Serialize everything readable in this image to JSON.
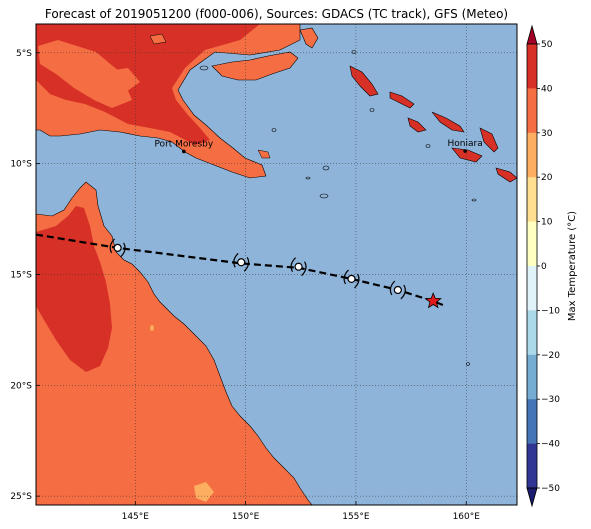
{
  "title": "Forecast of 2019051200 (f000-006), Sources: GDACS (TC track), GFS (Meteo)",
  "map": {
    "lon_range": [
      140.5,
      162.3
    ],
    "lat_range": [
      -25.4,
      -3.7
    ],
    "lon_ticks": [
      {
        "value": 145,
        "label": "145°E"
      },
      {
        "value": 150,
        "label": "150°E"
      },
      {
        "value": 155,
        "label": "155°E"
      },
      {
        "value": 160,
        "label": "160°E"
      }
    ],
    "lat_ticks": [
      {
        "value": -5,
        "label": "5°S"
      },
      {
        "value": -10,
        "label": "10°S"
      },
      {
        "value": -15,
        "label": "15°S"
      },
      {
        "value": -20,
        "label": "20°S"
      },
      {
        "value": -25,
        "label": "25°S"
      }
    ],
    "grid": "dotted",
    "colors": {
      "ocean": "#8fb4d9",
      "land_20_30": "#f46d43",
      "land_30_40": "#d73027",
      "land_10_20": "#fdae61",
      "track": "#000000",
      "star": "#e31a1c"
    }
  },
  "places": [
    {
      "name": "Port Moresby",
      "lon": 147.2,
      "lat": -9.45
    },
    {
      "name": "Honiara",
      "lon": 159.95,
      "lat": -9.43
    }
  ],
  "track": {
    "line": [
      [
        140.5,
        -13.2
      ],
      [
        144.2,
        -13.8
      ],
      [
        149.8,
        -14.5
      ],
      [
        152.4,
        -14.7
      ],
      [
        154.8,
        -15.2
      ],
      [
        156.9,
        -15.7
      ],
      [
        158.5,
        -16.2
      ],
      [
        159.0,
        -16.4
      ]
    ],
    "markers": [
      {
        "lon": 144.2,
        "lat": -13.8
      },
      {
        "lon": 149.8,
        "lat": -14.45
      },
      {
        "lon": 152.4,
        "lat": -14.65
      },
      {
        "lon": 154.8,
        "lat": -15.2
      },
      {
        "lon": 156.9,
        "lat": -15.7
      }
    ],
    "current": {
      "lon": 158.5,
      "lat": -16.2
    }
  },
  "colorbar": {
    "label": "Max Temperature (°C)",
    "ticks": [
      "50",
      "40",
      "30",
      "20",
      "10",
      "0",
      "−10",
      "−20",
      "−30",
      "−40",
      "−50"
    ],
    "colors": [
      "#a50026",
      "#d73027",
      "#f46d43",
      "#fdae61",
      "#fee090",
      "#ffffbf",
      "#e0f3f8",
      "#abd9e9",
      "#74add1",
      "#4575b4",
      "#313695",
      "#1a1a6e"
    ]
  }
}
